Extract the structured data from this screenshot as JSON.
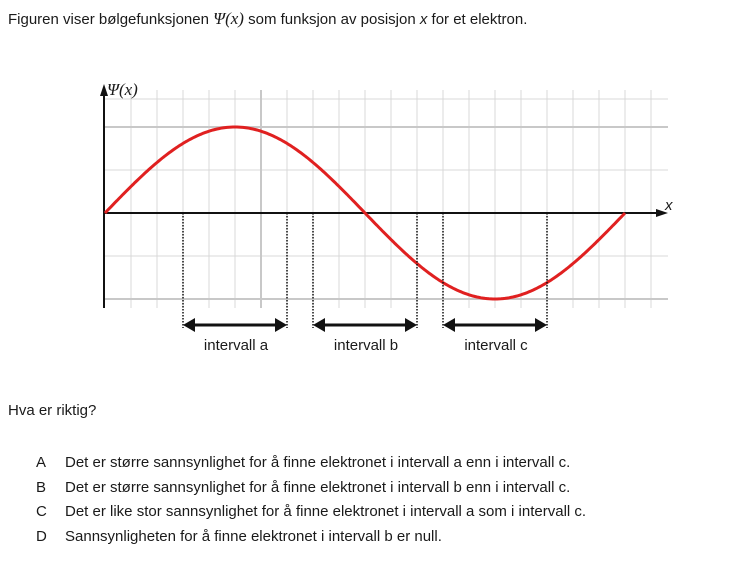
{
  "intro": [
    "Figuren viser bølgefunksjonen ",
    "Ψ(x)",
    " som funksjon av posisjon ",
    "x",
    " for et elektron."
  ],
  "figure": {
    "y_axis_label": "Ψ(x)",
    "x_axis_label": "x",
    "intervals": [
      "intervall a",
      "intervall b",
      "intervall c"
    ]
  },
  "question": "Hva er riktig?",
  "options": [
    {
      "letter": "A",
      "text": "Det er større sannsynlighet for å finne elektronet i intervall a enn i intervall c."
    },
    {
      "letter": "B",
      "text": "Det er større sannsynlighet for å finne elektronet i intervall b enn i intervall c."
    },
    {
      "letter": "C",
      "text": "Det er like stor sannsynlighet for å finne elektronet i intervall a som i intervall c."
    },
    {
      "letter": "D",
      "text": "Sannsynligheten for å finne elektronet i intervall b er null."
    }
  ]
}
